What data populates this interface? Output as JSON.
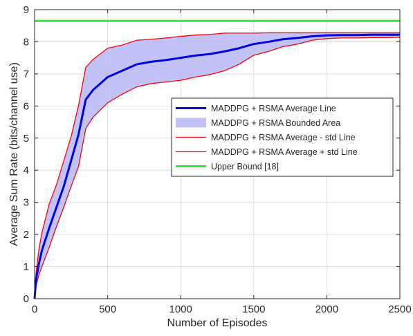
{
  "chart_data": {
    "type": "line",
    "xlabel": "Number of Episodes",
    "ylabel": "Average Sum Rate (bits/channel use)",
    "xlim": [
      0,
      2500
    ],
    "ylim": [
      0,
      9
    ],
    "xticks": [
      0,
      500,
      1000,
      1500,
      2000,
      2500
    ],
    "yticks": [
      0,
      1,
      2,
      3,
      4,
      5,
      6,
      7,
      8,
      9
    ],
    "grid": true,
    "legend_position": "right",
    "band": {
      "name": "MADDPG + RSMA Bounded Area",
      "color": "#b3b3f5"
    },
    "series": [
      {
        "name": "MADDPG + RSMA Average Line",
        "color": "#0000e6",
        "x": [
          0,
          10,
          30,
          50,
          100,
          150,
          200,
          250,
          300,
          350,
          400,
          500,
          600,
          700,
          800,
          900,
          1000,
          1100,
          1200,
          1300,
          1400,
          1500,
          1600,
          1700,
          1800,
          1900,
          2000,
          2100,
          2200,
          2300,
          2400,
          2500
        ],
        "y": [
          0,
          0.6,
          1.1,
          1.5,
          2.2,
          2.85,
          3.5,
          4.3,
          5.1,
          6.2,
          6.5,
          6.9,
          7.1,
          7.3,
          7.38,
          7.43,
          7.5,
          7.57,
          7.62,
          7.7,
          7.8,
          7.93,
          8.0,
          8.08,
          8.12,
          8.17,
          8.2,
          8.21,
          8.21,
          8.22,
          8.22,
          8.22
        ]
      },
      {
        "name": "MADDPG + RSMA Average - std Line",
        "color": "#ff0000",
        "x": [
          0,
          10,
          30,
          50,
          100,
          150,
          200,
          250,
          300,
          350,
          400,
          500,
          600,
          700,
          800,
          900,
          1000,
          1100,
          1200,
          1300,
          1400,
          1500,
          1600,
          1700,
          1800,
          1900,
          2000,
          2100,
          2200,
          2300,
          2400,
          2500
        ],
        "y": [
          0,
          0.4,
          0.75,
          1.0,
          1.6,
          2.25,
          2.85,
          3.5,
          4.1,
          5.3,
          5.65,
          6.1,
          6.37,
          6.6,
          6.7,
          6.75,
          6.8,
          6.9,
          6.98,
          7.1,
          7.3,
          7.58,
          7.7,
          7.85,
          7.93,
          8.05,
          8.1,
          8.12,
          8.12,
          8.13,
          8.13,
          8.14
        ]
      },
      {
        "name": "MADDPG + RSMA Average + std Line",
        "color": "#ff0000",
        "x": [
          0,
          10,
          30,
          50,
          100,
          150,
          200,
          250,
          300,
          350,
          400,
          500,
          600,
          700,
          800,
          900,
          1000,
          1100,
          1200,
          1300,
          1400,
          1500,
          1600,
          1700,
          1800,
          1900,
          2000,
          2100,
          2200,
          2300,
          2400,
          2500
        ],
        "y": [
          0,
          0.8,
          1.55,
          2.05,
          2.95,
          3.55,
          4.3,
          5.05,
          6.0,
          7.2,
          7.45,
          7.8,
          7.9,
          8.05,
          8.08,
          8.12,
          8.17,
          8.21,
          8.23,
          8.27,
          8.27,
          8.27,
          8.28,
          8.28,
          8.28,
          8.28,
          8.28,
          8.28,
          8.28,
          8.28,
          8.28,
          8.28
        ]
      },
      {
        "name": "Upper Bound [18]",
        "color": "#33e633",
        "x": [
          0,
          2500
        ],
        "y": [
          8.65,
          8.65
        ]
      }
    ]
  }
}
